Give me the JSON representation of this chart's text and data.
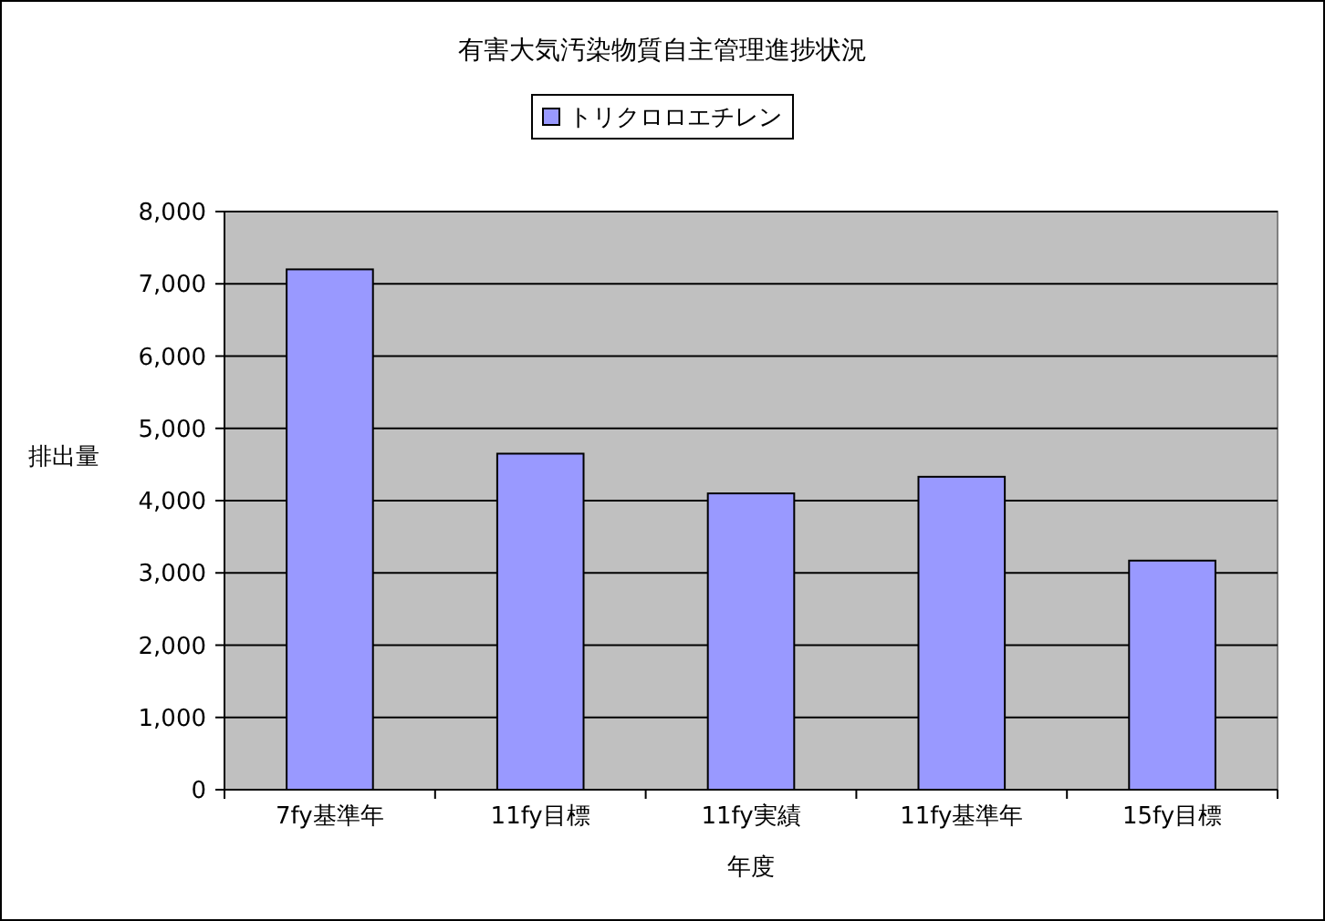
{
  "chart_data": {
    "type": "bar",
    "title": "有害大気汚染物質自主管理進捗状況",
    "xlabel": "年度",
    "ylabel": "排出量",
    "categories": [
      "7fy基準年",
      "11fy目標",
      "11fy実績",
      "11fy基準年",
      "15fy目標"
    ],
    "series": [
      {
        "name": "トリクロロエチレン",
        "color": "#9999ff",
        "values": [
          7200,
          4650,
          4100,
          4330,
          3170
        ]
      }
    ],
    "ylim": [
      0,
      8000
    ],
    "yticks": [
      0,
      {
        "value": 1000,
        "label": "1,000"
      },
      {
        "value": 2000,
        "label": "2,000"
      },
      {
        "value": 3000,
        "label": "3,000"
      },
      {
        "value": 4000,
        "label": "4,000"
      },
      {
        "value": 5000,
        "label": "5,000"
      },
      {
        "value": 6000,
        "label": "6,000"
      },
      {
        "value": 7000,
        "label": "7,000"
      },
      {
        "value": 8000,
        "label": "8,000"
      }
    ],
    "grid": "y",
    "legend": "top"
  }
}
